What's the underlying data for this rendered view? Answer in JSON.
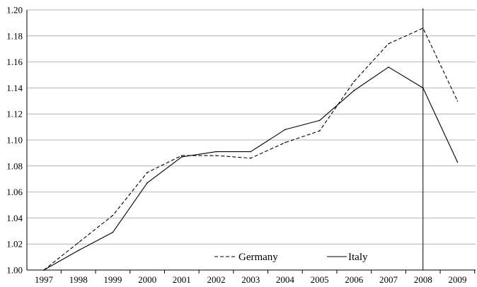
{
  "chart_data": {
    "type": "line",
    "x": [
      "1997",
      "1998",
      "1999",
      "2000",
      "2001",
      "2002",
      "2003",
      "2004",
      "2005",
      "2006",
      "2007",
      "2008",
      "2009"
    ],
    "series": [
      {
        "name": "Germany",
        "style": "dashed",
        "color": "#000000",
        "values": [
          1.0,
          1.021,
          1.042,
          1.075,
          1.088,
          1.088,
          1.086,
          1.098,
          1.107,
          1.145,
          1.174,
          1.186,
          1.13
        ]
      },
      {
        "name": "Italy",
        "style": "solid",
        "color": "#000000",
        "values": [
          1.0,
          1.015,
          1.029,
          1.067,
          1.087,
          1.091,
          1.091,
          1.108,
          1.115,
          1.138,
          1.156,
          1.14,
          1.083
        ]
      }
    ],
    "ylim": [
      1.0,
      1.2
    ],
    "yticks": [
      "1.00",
      "1.02",
      "1.04",
      "1.06",
      "1.08",
      "1.10",
      "1.12",
      "1.14",
      "1.16",
      "1.18",
      "1.20"
    ],
    "grid": "horizontal",
    "legend": "bottom-center",
    "vertical_marker_x": "2008",
    "title": "",
    "xlabel": "",
    "ylabel": ""
  }
}
